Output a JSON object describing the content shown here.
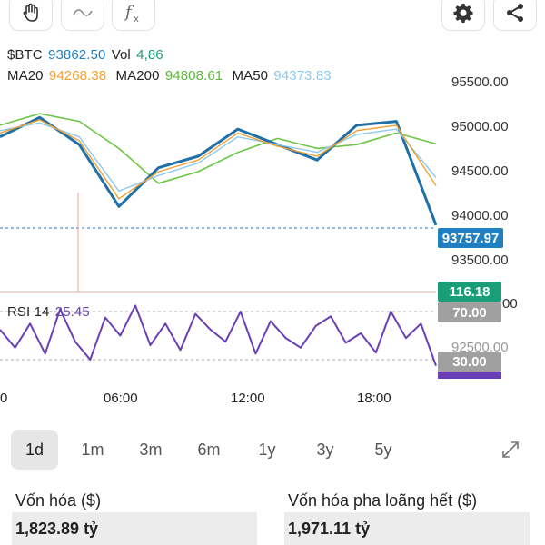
{
  "toolbar": {
    "left_icons": [
      "hand-icon",
      "wave-icon",
      "function-icon"
    ],
    "right_icons": [
      "gear-icon",
      "share-icon"
    ]
  },
  "legend": {
    "symbol": "$BTC",
    "price": "93862.50",
    "vol_label": "Vol",
    "vol_value": "4,86",
    "ma20_label": "MA20",
    "ma20_value": "94268.38",
    "ma200_label": "MA200",
    "ma200_value": "94808.61",
    "ma50_label": "MA50",
    "ma50_value": "94373.83",
    "rsi_label": "RSI 14",
    "rsi_value": "25.45"
  },
  "colors": {
    "price": "#1f6fa8",
    "ma20": "#f0a030",
    "ma200": "#6cc644",
    "ma50": "#8ec9ef",
    "rsi": "#6a3fb5",
    "last_price_tag": "#1f7fc0",
    "green_tag": "#1a9e7a",
    "grey_tag": "#a0a0a0"
  },
  "price_axis": [
    "95500.00",
    "95000.00",
    "94500.00",
    "94000.00",
    "93500.00"
  ],
  "tags": {
    "last_price": "93757.97",
    "volume_tag": "116.18",
    "rsi_upper": "70.00",
    "rsi_lower": "30.00"
  },
  "rsi_axis_partial": [
    "00",
    "92500.00"
  ],
  "time_axis": [
    "0",
    "06:00",
    "12:00",
    "18:00"
  ],
  "ranges": [
    "1d",
    "1m",
    "3m",
    "6m",
    "1y",
    "3y",
    "5y"
  ],
  "active_range": "1d",
  "expand_icon": "expand-icon",
  "stats": {
    "market_cap_label": "Vốn hóa ($)",
    "market_cap_value": "1,823.89 tỷ",
    "fdv_label": "Vốn hóa pha loãng hết ($)",
    "fdv_value": "1,971.11 tỷ"
  },
  "chart_data": {
    "type": "line",
    "price_ylim": [
      93300,
      95600
    ],
    "x": [
      "00:00",
      "02:00",
      "04:00",
      "06:00",
      "08:00",
      "10:00",
      "12:00",
      "14:00",
      "16:00",
      "18:00",
      "20:00",
      "21:00"
    ],
    "series": [
      {
        "name": "$BTC",
        "values": [
          94900,
          95150,
          94800,
          94000,
          94500,
          94650,
          95000,
          94800,
          94600,
          95050,
          95100,
          93760
        ]
      },
      {
        "name": "MA20",
        "values": [
          94950,
          95120,
          94850,
          94100,
          94450,
          94600,
          94950,
          94780,
          94650,
          94980,
          95050,
          94268
        ]
      },
      {
        "name": "MA50",
        "values": [
          94980,
          95080,
          94900,
          94200,
          94400,
          94560,
          94900,
          94800,
          94700,
          94930,
          95000,
          94374
        ]
      },
      {
        "name": "MA200",
        "values": [
          95050,
          95200,
          95100,
          94750,
          94300,
          94450,
          94700,
          94880,
          94750,
          94800,
          94950,
          94809
        ]
      }
    ],
    "rsi": {
      "name": "RSI 14",
      "ylim": [
        0,
        100
      ],
      "levels": [
        70,
        30
      ],
      "values": [
        55,
        40,
        60,
        35,
        72,
        45,
        30,
        65,
        50,
        75,
        42,
        60,
        38,
        68,
        55,
        45,
        70,
        35,
        62,
        48,
        40,
        58,
        66,
        44,
        52,
        36,
        70,
        48,
        60,
        25
      ]
    },
    "grid": false
  }
}
